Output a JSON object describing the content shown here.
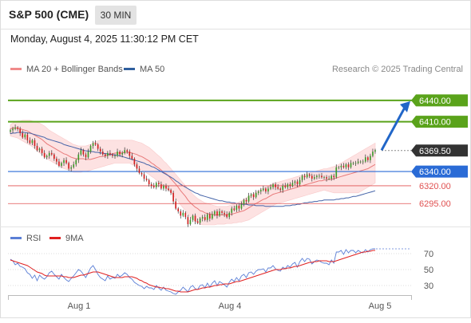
{
  "header": {
    "title": "S&P 500 (CME)",
    "timeframe": "30 MIN",
    "datetime": "Monday, August 4, 2025 11:30:12 PM CET"
  },
  "legend": {
    "items": [
      {
        "label": "MA 20 + Bollinger Bands",
        "color": "#f08a8a"
      },
      {
        "label": "MA 50",
        "color": "#2f5f9e"
      }
    ],
    "credit": "Research © 2025 Trading Central"
  },
  "rsi_legend": {
    "items": [
      {
        "label": "RSI",
        "color": "#5b7fd6"
      },
      {
        "label": "9MA",
        "color": "#e02020"
      }
    ]
  },
  "colors": {
    "target_green": "#5aa31b",
    "pivot_blue": "#2a6bd6",
    "support_red": "#e05050",
    "candle_up": "#3c9a2a",
    "candle_down": "#d02020",
    "band_fill": "#fde2e2",
    "arrow": "#2166c8",
    "price_tag": "#333333"
  },
  "chart_data": [
    {
      "type": "candlestick",
      "y_range": [
        6265,
        6460
      ],
      "x_ticks": [
        "Aug 1",
        "Aug 4",
        "Aug 5"
      ],
      "levels": [
        {
          "value": 6440.0,
          "label": "6440.00",
          "kind": "target"
        },
        {
          "value": 6410.0,
          "label": "6410.00",
          "kind": "target"
        },
        {
          "value": 6369.5,
          "label": "6369.50",
          "kind": "last"
        },
        {
          "value": 6340.0,
          "label": "6340.00",
          "kind": "pivot"
        },
        {
          "value": 6320.0,
          "label": "6320.00",
          "kind": "support"
        },
        {
          "value": 6295.0,
          "label": "6295.00",
          "kind": "support"
        }
      ],
      "close": [
        6398,
        6400,
        6402,
        6400,
        6394,
        6388,
        6392,
        6384,
        6380,
        6384,
        6376,
        6370,
        6372,
        6366,
        6360,
        6362,
        6366,
        6364,
        6358,
        6354,
        6348,
        6352,
        6356,
        6352,
        6344,
        6346,
        6350,
        6356,
        6364,
        6370,
        6364,
        6360,
        6368,
        6376,
        6380,
        6378,
        6372,
        6368,
        6364,
        6362,
        6366,
        6364,
        6362,
        6362,
        6368,
        6364,
        6366,
        6370,
        6368,
        6362,
        6358,
        6350,
        6344,
        6338,
        6336,
        6330,
        6328,
        6322,
        6320,
        6318,
        6324,
        6322,
        6316,
        6320,
        6316,
        6314,
        6310,
        6298,
        6288,
        6284,
        6278,
        6282,
        6276,
        6266,
        6272,
        6278,
        6270,
        6268,
        6274,
        6276,
        6272,
        6280,
        6274,
        6280,
        6284,
        6278,
        6284,
        6282,
        6280,
        6276,
        6282,
        6288,
        6286,
        6292,
        6288,
        6294,
        6300,
        6298,
        6306,
        6308,
        6304,
        6310,
        6312,
        6314,
        6316,
        6312,
        6316,
        6318,
        6322,
        6318,
        6316,
        6314,
        6320,
        6318,
        6322,
        6320,
        6324,
        6326,
        6322,
        6328,
        6334,
        6332,
        6336,
        6334,
        6330,
        6332,
        6334,
        6334,
        6332,
        6332,
        6330,
        6330,
        6334,
        6332,
        6346,
        6346,
        6348,
        6346,
        6350,
        6346,
        6352,
        6352,
        6352,
        6354,
        6354,
        6354,
        6360,
        6356,
        6362,
        6368,
        6370
      ],
      "ma20": [
        6400,
        6401,
        6401,
        6401,
        6400,
        6399,
        6398,
        6397,
        6395,
        6393,
        6391,
        6389,
        6387,
        6385,
        6382,
        6379,
        6377,
        6375,
        6373,
        6371,
        6369,
        6367,
        6365,
        6364,
        6362,
        6360,
        6359,
        6358,
        6358,
        6358,
        6358,
        6357,
        6357,
        6357,
        6358,
        6359,
        6360,
        6361,
        6361,
        6362,
        6363,
        6364,
        6365,
        6366,
        6366,
        6366,
        6366,
        6367,
        6367,
        6367,
        6366,
        6365,
        6364,
        6362,
        6361,
        6359,
        6357,
        6355,
        6352,
        6350,
        6347,
        6345,
        6342,
        6339,
        6337,
        6334,
        6330,
        6326,
        6322,
        6318,
        6313,
        6309,
        6305,
        6300,
        6296,
        6293,
        6290,
        6288,
        6285,
        6284,
        6282,
        6281,
        6280,
        6280,
        6279,
        6279,
        6279,
        6279,
        6279,
        6279,
        6280,
        6280,
        6281,
        6282,
        6283,
        6284,
        6285,
        6287,
        6289,
        6291,
        6293,
        6295,
        6297,
        6299,
        6301,
        6302,
        6304,
        6306,
        6308,
        6309,
        6310,
        6311,
        6312,
        6313,
        6314,
        6315,
        6316,
        6317,
        6318,
        6319,
        6320,
        6321,
        6322,
        6323,
        6324,
        6325,
        6326,
        6327,
        6327,
        6328,
        6328,
        6329,
        6329,
        6330,
        6331,
        6332,
        6333,
        6334,
        6335,
        6336,
        6337,
        6338,
        6339,
        6340,
        6341,
        6342,
        6343,
        6344,
        6346,
        6348,
        6350
      ],
      "bb_upper": [
        6406,
        6408,
        6410,
        6411,
        6411,
        6412,
        6412,
        6412,
        6412,
        6411,
        6410,
        6409,
        6408,
        6406,
        6404,
        6401,
        6398,
        6396,
        6394,
        6392,
        6390,
        6388,
        6386,
        6384,
        6382,
        6380,
        6378,
        6377,
        6376,
        6376,
        6376,
        6376,
        6377,
        6378,
        6380,
        6382,
        6383,
        6384,
        6384,
        6384,
        6384,
        6384,
        6384,
        6384,
        6384,
        6384,
        6384,
        6384,
        6384,
        6384,
        6384,
        6383,
        6382,
        6381,
        6380,
        6378,
        6376,
        6374,
        6371,
        6368,
        6365,
        6362,
        6359,
        6355,
        6352,
        6348,
        6344,
        6340,
        6336,
        6332,
        6328,
        6324,
        6320,
        6316,
        6312,
        6308,
        6305,
        6302,
        6300,
        6298,
        6296,
        6295,
        6294,
        6293,
        6292,
        6291,
        6291,
        6291,
        6291,
        6291,
        6292,
        6293,
        6294,
        6295,
        6297,
        6299,
        6301,
        6303,
        6305,
        6307,
        6309,
        6311,
        6313,
        6315,
        6317,
        6318,
        6319,
        6321,
        6323,
        6324,
        6325,
        6326,
        6327,
        6328,
        6329,
        6330,
        6331,
        6332,
        6333,
        6334,
        6335,
        6336,
        6337,
        6338,
        6339,
        6340,
        6341,
        6342,
        6343,
        6344,
        6344,
        6345,
        6346,
        6347,
        6348,
        6350,
        6352,
        6354,
        6356,
        6358,
        6360,
        6362,
        6364,
        6366,
        6368,
        6370,
        6372,
        6374,
        6376,
        6378,
        6380
      ],
      "bb_lower": [
        6390,
        6389,
        6388,
        6387,
        6385,
        6383,
        6381,
        6379,
        6377,
        6375,
        6372,
        6369,
        6366,
        6364,
        6361,
        6358,
        6356,
        6354,
        6352,
        6350,
        6348,
        6346,
        6344,
        6343,
        6342,
        6340,
        6339,
        6339,
        6339,
        6339,
        6340,
        6340,
        6341,
        6342,
        6343,
        6344,
        6345,
        6346,
        6347,
        6348,
        6349,
        6350,
        6351,
        6352,
        6352,
        6352,
        6352,
        6352,
        6352,
        6352,
        6350,
        6348,
        6346,
        6344,
        6342,
        6340,
        6338,
        6336,
        6333,
        6331,
        6328,
        6325,
        6322,
        6320,
        6317,
        6314,
        6311,
        6307,
        6302,
        6298,
        6293,
        6289,
        6285,
        6280,
        6276,
        6273,
        6270,
        6268,
        6266,
        6265,
        6265,
        6265,
        6265,
        6265,
        6265,
        6266,
        6266,
        6266,
        6266,
        6267,
        6267,
        6267,
        6268,
        6268,
        6269,
        6269,
        6270,
        6271,
        6272,
        6274,
        6276,
        6278,
        6280,
        6282,
        6284,
        6286,
        6288,
        6290,
        6292,
        6294,
        6295,
        6296,
        6297,
        6298,
        6299,
        6300,
        6301,
        6302,
        6303,
        6304,
        6305,
        6306,
        6307,
        6308,
        6309,
        6310,
        6311,
        6312,
        6313,
        6314,
        6313,
        6312,
        6311,
        6310,
        6310,
        6310,
        6310,
        6310,
        6310,
        6310,
        6310,
        6310,
        6310,
        6310,
        6312,
        6314,
        6316,
        6318,
        6320,
        6322,
        6324
      ],
      "ma50": [
        6393,
        6394,
        6394,
        6395,
        6395,
        6395,
        6395,
        6394,
        6394,
        6393,
        6392,
        6391,
        6390,
        6389,
        6388,
        6386,
        6385,
        6384,
        6383,
        6382,
        6381,
        6380,
        6378,
        6377,
        6376,
        6375,
        6374,
        6373,
        6372,
        6371,
        6370,
        6369,
        6369,
        6368,
        6368,
        6367,
        6367,
        6366,
        6366,
        6365,
        6365,
        6364,
        6364,
        6363,
        6363,
        6362,
        6361,
        6360,
        6359,
        6358,
        6357,
        6356,
        6355,
        6354,
        6353,
        6352,
        6350,
        6349,
        6347,
        6346,
        6344,
        6342,
        6340,
        6338,
        6336,
        6334,
        6332,
        6330,
        6327,
        6325,
        6322,
        6320,
        6318,
        6316,
        6314,
        6312,
        6310,
        6309,
        6307,
        6306,
        6305,
        6304,
        6303,
        6302,
        6301,
        6300,
        6299,
        6299,
        6298,
        6297,
        6297,
        6296,
        6296,
        6295,
        6295,
        6294,
        6294,
        6294,
        6293,
        6293,
        6293,
        6292,
        6292,
        6292,
        6292,
        6291,
        6291,
        6291,
        6291,
        6291,
        6291,
        6291,
        6291,
        6292,
        6292,
        6292,
        6293,
        6293,
        6294,
        6294,
        6295,
        6296,
        6296,
        6297,
        6297,
        6298,
        6298,
        6299,
        6299,
        6300,
        6300,
        6300,
        6300,
        6300,
        6301,
        6301,
        6302,
        6302,
        6303,
        6303,
        6304,
        6305,
        6305,
        6306,
        6307,
        6308,
        6309,
        6310,
        6311,
        6312,
        6313
      ],
      "projection_to": 6440
    },
    {
      "type": "line",
      "name": "RSI",
      "y_range": [
        18,
        82
      ],
      "y_ticks": [
        70,
        50,
        30
      ],
      "rsi": [
        63,
        61,
        56,
        58,
        54,
        53,
        51,
        46,
        44,
        39,
        43,
        36,
        43,
        40,
        38,
        41,
        46,
        48,
        44,
        41,
        38,
        44,
        40,
        37,
        35,
        39,
        42,
        46,
        50,
        48,
        44,
        40,
        46,
        52,
        55,
        50,
        44,
        40,
        38,
        36,
        42,
        38,
        40,
        39,
        44,
        41,
        43,
        46,
        44,
        40,
        38,
        34,
        32,
        30,
        29,
        26,
        29,
        27,
        27,
        25,
        30,
        27,
        24,
        28,
        24,
        23,
        22,
        20,
        19,
        22,
        24,
        28,
        25,
        22,
        28,
        30,
        26,
        25,
        30,
        31,
        27,
        33,
        28,
        33,
        36,
        30,
        35,
        33,
        31,
        28,
        34,
        38,
        35,
        40,
        36,
        42,
        44,
        40,
        46,
        47,
        44,
        48,
        50,
        50,
        51,
        47,
        52,
        52,
        55,
        51,
        49,
        48,
        53,
        51,
        55,
        53,
        57,
        59,
        53,
        60,
        64,
        60,
        64,
        63,
        57,
        60,
        62,
        61,
        59,
        58,
        58,
        56,
        62,
        58,
        72,
        72,
        74,
        69,
        75,
        71,
        74,
        74,
        71,
        74,
        72,
        71,
        75,
        72,
        75,
        76,
        76
      ],
      "ma9": [
        62,
        61,
        60,
        59,
        58,
        57,
        56,
        55,
        53,
        51,
        49,
        47,
        46,
        45,
        43,
        42,
        42,
        42,
        42,
        42,
        42,
        42,
        41,
        41,
        40,
        40,
        40,
        41,
        42,
        43,
        43,
        44,
        45,
        46,
        47,
        47,
        47,
        46,
        45,
        44,
        43,
        42,
        41,
        40,
        40,
        40,
        40,
        41,
        41,
        41,
        41,
        40,
        39,
        37,
        36,
        34,
        33,
        31,
        30,
        29,
        28,
        28,
        27,
        27,
        26,
        26,
        25,
        24,
        23,
        23,
        22,
        22,
        22,
        22,
        23,
        24,
        25,
        25,
        26,
        27,
        27,
        28,
        28,
        29,
        30,
        30,
        31,
        31,
        32,
        32,
        32,
        33,
        34,
        35,
        35,
        36,
        37,
        38,
        39,
        40,
        41,
        42,
        43,
        44,
        45,
        46,
        47,
        48,
        49,
        50,
        50,
        50,
        51,
        51,
        52,
        52,
        53,
        54,
        54,
        55,
        56,
        57,
        58,
        59,
        59,
        60,
        60,
        61,
        61,
        61,
        61,
        60,
        60,
        60,
        61,
        62,
        63,
        64,
        65,
        66,
        67,
        68,
        69,
        70,
        71,
        72,
        72,
        73,
        73,
        74,
        74
      ]
    }
  ]
}
